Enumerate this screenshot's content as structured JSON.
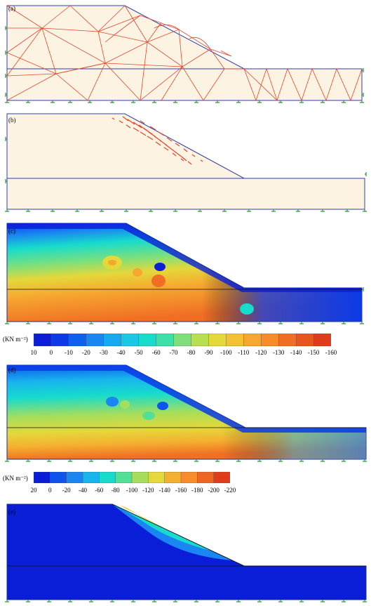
{
  "panels": {
    "a": {
      "label": "(a)"
    },
    "b": {
      "label": "(b)"
    },
    "c": {
      "label": "(c)"
    },
    "d": {
      "label": "(d)"
    },
    "e": {
      "label": "(e)"
    }
  },
  "legend_c": {
    "unit": "(KN m⁻²)",
    "ticks": [
      "10",
      "0",
      "-10",
      "-20",
      "-30",
      "-40",
      "-50",
      "-60",
      "-70",
      "-80",
      "-90",
      "-100",
      "-110",
      "-120",
      "-130",
      "-140",
      "-150",
      "-160"
    ],
    "colors": [
      "#0a1ed8",
      "#0b3ae6",
      "#0e60ef",
      "#1a86f2",
      "#18aaf0",
      "#1ac8e6",
      "#17dccc",
      "#3de0a6",
      "#7ee07a",
      "#b8de52",
      "#e4d83a",
      "#f2c234",
      "#f6a730",
      "#f68c2a",
      "#f06f24",
      "#e8561e",
      "#e03c1a"
    ]
  },
  "legend_d": {
    "unit": "(KN m⁻²)",
    "ticks": [
      "20",
      "0",
      "-20",
      "-40",
      "-60",
      "-80",
      "-100",
      "-120",
      "-140",
      "-160",
      "-180",
      "-200",
      "-220"
    ],
    "colors": [
      "#0a1ed8",
      "#0e54ec",
      "#1a86f2",
      "#18b4ee",
      "#17dccc",
      "#52e096",
      "#a6de5c",
      "#e4d83a",
      "#f4b030",
      "#f68c2a",
      "#ee6622",
      "#e03c1a"
    ]
  },
  "colors": {
    "background_mesh": "#fdf3e3",
    "boundary": "#2c3fb0",
    "mesh_lines": "#e8442a",
    "support_marks": "#2a9a3a",
    "water_blue": "#0a1ed8"
  }
}
